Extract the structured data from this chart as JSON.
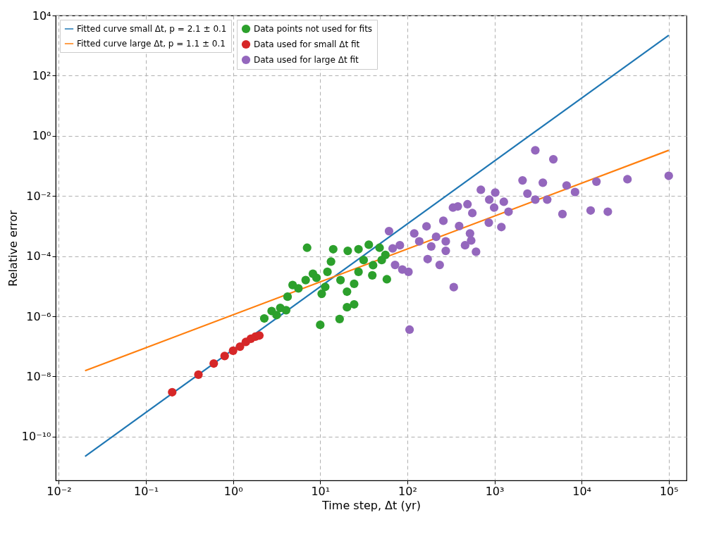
{
  "chart_data": {
    "type": "scatter",
    "xlabel": "Time step, Δt (yr)",
    "ylabel": "Relative error",
    "log": "xy",
    "grid": true,
    "legend": "top left",
    "xlim": [
      0.0092,
      160000
    ],
    "ylim": [
      3.5e-12,
      10000
    ],
    "xticks": [
      {
        "value": 0.01,
        "label": "10⁻²"
      },
      {
        "value": 0.1,
        "label": "10⁻¹"
      },
      {
        "value": 1,
        "label": "10⁰"
      },
      {
        "value": 10,
        "label": "10¹"
      },
      {
        "value": 100,
        "label": "10²"
      },
      {
        "value": 1000,
        "label": "10³"
      },
      {
        "value": 10000,
        "label": "10⁴"
      },
      {
        "value": 100000,
        "label": "10⁵"
      }
    ],
    "yticks": [
      {
        "value": 1e-10,
        "label": "10⁻¹⁰"
      },
      {
        "value": 1e-08,
        "label": "10⁻⁸"
      },
      {
        "value": 1e-06,
        "label": "10⁻⁶"
      },
      {
        "value": 0.0001,
        "label": "10⁻⁴"
      },
      {
        "value": 0.01,
        "label": "10⁻²"
      },
      {
        "value": 1,
        "label": "10⁰"
      },
      {
        "value": 100,
        "label": "10²"
      },
      {
        "value": 10000,
        "label": "10⁴"
      }
    ],
    "series": [
      {
        "type": "line",
        "name": "Fitted curve small Δt, p = 2.1 ± 0.1",
        "color": "#1f77b4",
        "x": [
          0.02,
          100000
        ],
        "values": [
          2.2e-11,
          2200
        ]
      },
      {
        "type": "line",
        "name": "Fitted curve large Δt, p = 1.1 ± 0.1",
        "color": "#ff7f0e",
        "x": [
          0.02,
          100000
        ],
        "values": [
          1.55e-08,
          0.33
        ]
      },
      {
        "type": "scatter",
        "name": "Data points not used for fits",
        "color": "#2ca02c",
        "marker": "circle",
        "x": [
          2.28,
          2.77,
          3.16,
          3.48,
          4.06,
          4.22,
          4.82,
          5.62,
          6.81,
          7.07,
          8.24,
          9.06,
          10.0,
          10.4,
          11.4,
          12.1,
          13.3,
          14.1,
          16.7,
          17.1,
          20.3,
          20.3,
          20.7,
          24.5,
          24.5,
          27.5,
          27.5,
          31.5,
          36.1,
          39.6,
          40.4,
          48.0,
          50.8,
          56.0,
          58.2
        ],
        "values": [
          8.5e-07,
          1.5e-06,
          1.1e-06,
          1.9e-06,
          1.6e-06,
          4.5e-06,
          1.1e-05,
          8.5e-06,
          1.6e-05,
          0.00019,
          2.6e-05,
          1.9e-05,
          5.2e-07,
          5.6e-06,
          9.5e-06,
          3e-05,
          6.6e-05,
          0.00017,
          8.1e-07,
          1.6e-05,
          6.6e-06,
          2e-06,
          0.00015,
          1.2e-05,
          2.5e-06,
          0.00017,
          3e-05,
          7.4e-05,
          0.00024,
          2.3e-05,
          5e-05,
          0.00019,
          7.4e-05,
          0.00011,
          1.7e-05
        ]
      },
      {
        "type": "scatter",
        "name": "Data used for small Δt fit",
        "color": "#d62728",
        "marker": "circle",
        "x": [
          0.2,
          0.4,
          0.6,
          0.8,
          1.0,
          1.2,
          1.4,
          1.6,
          1.8,
          2.0
        ],
        "values": [
          3e-09,
          1.15e-08,
          2.7e-08,
          4.8e-08,
          7.2e-08,
          9.8e-08,
          1.4e-07,
          1.8e-07,
          2.1e-07,
          2.3e-07
        ]
      },
      {
        "type": "scatter",
        "name": "Data used for large Δt fit",
        "color": "#9467bd",
        "marker": "circle",
        "x": [
          2940,
          4740,
          2100,
          3590,
          6730,
          8410,
          14800,
          33600,
          100000,
          2390,
          2940,
          4030,
          6030,
          12700,
          20000,
          698,
          1020,
          1280,
          871,
          991,
          1450,
          557,
          380,
          490,
          334,
          259,
          393,
          861,
          1200,
          61.6,
          166,
          120,
          137,
          214,
          276,
          82,
          67.8,
          188,
          276,
          524,
          540,
          460,
          614,
          171,
          235,
          72.3,
          103,
          87.5,
          341,
          106
        ],
        "values": [
          0.33,
          0.166,
          0.033,
          0.0277,
          0.0224,
          0.0135,
          0.03,
          0.036,
          0.047,
          0.012,
          0.0076,
          0.0076,
          0.0025,
          0.0033,
          0.003,
          0.016,
          0.013,
          0.0064,
          0.0076,
          0.0041,
          0.003,
          0.0027,
          0.0045,
          0.0053,
          0.0041,
          0.0015,
          0.001,
          0.0013,
          0.00093,
          0.00068,
          0.00098,
          0.00057,
          0.00031,
          0.00044,
          0.00031,
          0.00023,
          0.00018,
          0.00021,
          0.00015,
          0.00057,
          0.00033,
          0.00023,
          0.00014,
          8e-05,
          5.1e-05,
          5.1e-05,
          3e-05,
          3.6e-05,
          9.3e-06,
          3.6e-07
        ]
      }
    ]
  }
}
